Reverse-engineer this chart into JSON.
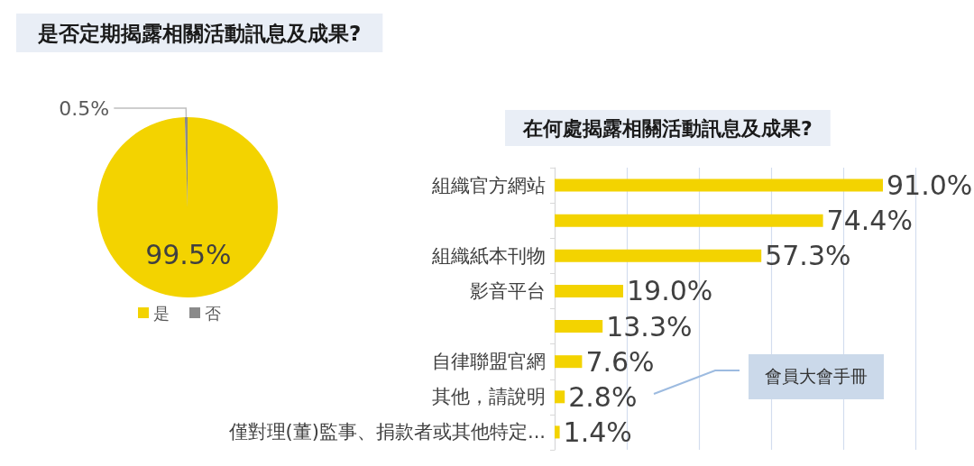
{
  "chart_data": [
    {
      "type": "pie",
      "title": "是否定期揭露相關活動訊息及成果?",
      "categories": [
        "是",
        "否"
      ],
      "values": [
        99.5,
        0.5
      ],
      "colors": [
        "#f3d300",
        "#8a8a8a"
      ],
      "value_labels": [
        "99.5%",
        "0.5%"
      ],
      "legend": "bottom"
    },
    {
      "type": "bar",
      "orientation": "horizontal",
      "title": "在何處揭露相關活動訊息及成果?",
      "categories": [
        "組織官方網站",
        null,
        "組織紙本刊物",
        "影音平台",
        null,
        "自律聯盟官網",
        "其他，請說明",
        "僅對理(董)監事、捐款者或其他特定..."
      ],
      "values": [
        91.0,
        74.4,
        57.3,
        19.0,
        13.3,
        7.6,
        2.8,
        1.4
      ],
      "color": "#f3d300",
      "value_labels": [
        "91.0%",
        "74.4%",
        "57.3%",
        "19.0%",
        "13.3%",
        "7.6%",
        "2.8%",
        "1.4%"
      ],
      "xlim": [
        0,
        100
      ],
      "xticks": [
        0,
        20,
        40,
        60,
        80,
        100
      ],
      "tick_labels": "y",
      "grid": "x",
      "annotations": [
        "會員大會手冊"
      ]
    }
  ]
}
